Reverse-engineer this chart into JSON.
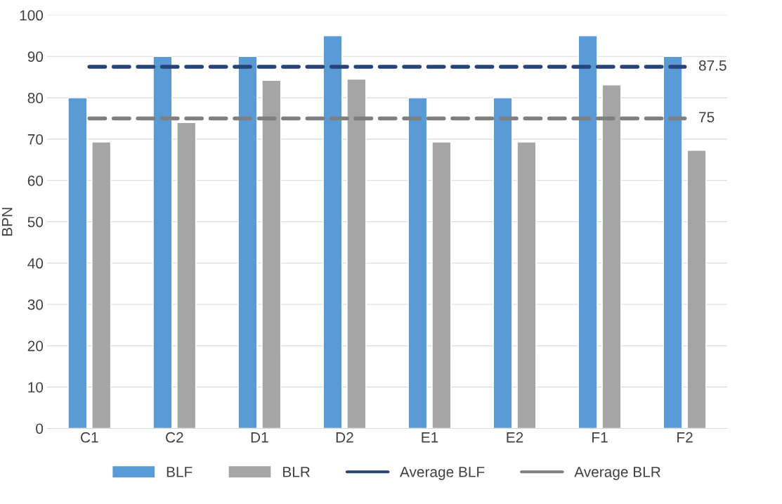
{
  "chart_data": {
    "type": "bar",
    "ylabel": "BPN",
    "categories": [
      "C1",
      "C2",
      "D1",
      "D2",
      "E1",
      "E2",
      "F1",
      "F2"
    ],
    "series": [
      {
        "name": "BLF",
        "color": "#5b9bd5",
        "values": [
          80,
          90,
          90,
          95,
          80,
          80,
          95,
          90
        ]
      },
      {
        "name": "BLR",
        "color": "#a5a5a5",
        "values": [
          69.3,
          74,
          84.2,
          84.5,
          69.3,
          69.3,
          83.1,
          67.3
        ]
      },
      {
        "name": "Average BLF",
        "type": "line",
        "line_style": "dashed",
        "color": "#264478",
        "values": [
          87.5,
          87.5,
          87.5,
          87.5,
          87.5,
          87.5,
          87.5,
          87.5
        ],
        "value_labels": [
          null,
          null,
          null,
          null,
          null,
          null,
          null,
          "87.5"
        ]
      },
      {
        "name": "Average BLR",
        "type": "line",
        "line_style": "dashed",
        "color": "#7f7f7f",
        "values": [
          75,
          75,
          75,
          75,
          75,
          75,
          75,
          75
        ],
        "value_labels": [
          null,
          null,
          null,
          null,
          null,
          null,
          null,
          "75"
        ]
      }
    ],
    "ylim": [
      0,
      100
    ],
    "yticks": [
      0,
      10,
      20,
      30,
      40,
      50,
      60,
      70,
      80,
      90,
      100
    ],
    "grid": "y",
    "legend": "bottom"
  }
}
